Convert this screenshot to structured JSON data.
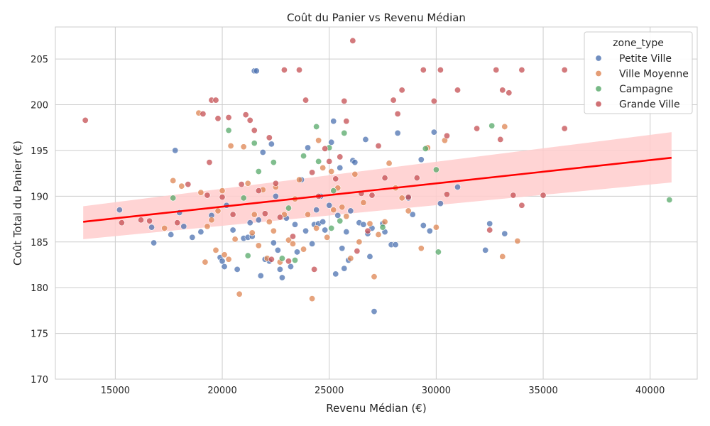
{
  "chart_data": {
    "type": "scatter",
    "title": "Coût du Panier vs Revenu Médian",
    "xlabel": "Revenu Médian (€)",
    "ylabel": "Coût Total du Panier (€)",
    "xlim": [
      12200,
      42200
    ],
    "ylim": [
      170,
      208.5
    ],
    "x_ticks": [
      15000,
      20000,
      25000,
      30000,
      35000,
      40000
    ],
    "y_ticks": [
      170,
      175,
      180,
      185,
      190,
      195,
      200,
      205
    ],
    "grid": true,
    "legend": {
      "title": "zone_type",
      "placement": "top-right",
      "entries": [
        "Petite Ville",
        "Ville Moyenne",
        "Campagne",
        "Grande Ville"
      ]
    },
    "colors": {
      "Petite Ville": "#4c72b0",
      "Ville Moyenne": "#dd8452",
      "Campagne": "#55a868",
      "Grande Ville": "#c44e52",
      "regression": "#ff0000",
      "ci_band": "#ffcccc"
    },
    "regression": {
      "x": [
        13500,
        41000
      ],
      "y": [
        187.2,
        194.2
      ],
      "ci_lower": [
        185.3,
        191.5
      ],
      "ci_upper": [
        188.9,
        197.0
      ]
    },
    "series": [
      {
        "name": "Petite Ville",
        "points": [
          [
            15200,
            188.5
          ],
          [
            16700,
            186.6
          ],
          [
            16800,
            184.9
          ],
          [
            17600,
            185.8
          ],
          [
            17800,
            195.0
          ],
          [
            18000,
            188.2
          ],
          [
            18200,
            186.7
          ],
          [
            18600,
            185.5
          ],
          [
            19000,
            186.1
          ],
          [
            19500,
            187.9
          ],
          [
            19900,
            183.3
          ],
          [
            20000,
            182.9
          ],
          [
            20100,
            182.3
          ],
          [
            20200,
            189.0
          ],
          [
            20500,
            186.3
          ],
          [
            20700,
            182.0
          ],
          [
            21000,
            185.4
          ],
          [
            21200,
            185.5
          ],
          [
            21300,
            187.1
          ],
          [
            21400,
            185.6
          ],
          [
            21500,
            203.7
          ],
          [
            21600,
            203.7
          ],
          [
            21700,
            187.4
          ],
          [
            21800,
            181.3
          ],
          [
            21900,
            194.8
          ],
          [
            22000,
            183.1
          ],
          [
            22200,
            182.9
          ],
          [
            22300,
            195.7
          ],
          [
            22400,
            184.9
          ],
          [
            22500,
            190.0
          ],
          [
            22600,
            184.1
          ],
          [
            22700,
            182.0
          ],
          [
            22800,
            181.1
          ],
          [
            23000,
            187.6
          ],
          [
            23200,
            182.3
          ],
          [
            23400,
            186.9
          ],
          [
            23500,
            183.9
          ],
          [
            23700,
            191.8
          ],
          [
            23900,
            186.2
          ],
          [
            24000,
            195.3
          ],
          [
            24200,
            184.8
          ],
          [
            24300,
            186.9
          ],
          [
            24400,
            188.5
          ],
          [
            24500,
            187.0
          ],
          [
            24600,
            190.0
          ],
          [
            24700,
            187.2
          ],
          [
            24800,
            186.3
          ],
          [
            25000,
            189.0
          ],
          [
            25100,
            195.9
          ],
          [
            25200,
            198.2
          ],
          [
            25300,
            181.5
          ],
          [
            25400,
            187.9
          ],
          [
            25500,
            193.1
          ],
          [
            25600,
            184.3
          ],
          [
            25700,
            182.1
          ],
          [
            25800,
            186.1
          ],
          [
            25900,
            183.0
          ],
          [
            26000,
            188.4
          ],
          [
            26100,
            193.9
          ],
          [
            26200,
            193.7
          ],
          [
            26400,
            187.1
          ],
          [
            26600,
            186.9
          ],
          [
            26700,
            196.2
          ],
          [
            26800,
            185.9
          ],
          [
            26900,
            183.4
          ],
          [
            27000,
            186.5
          ],
          [
            27100,
            177.4
          ],
          [
            27500,
            187.0
          ],
          [
            27600,
            186.1
          ],
          [
            27900,
            184.7
          ],
          [
            28100,
            184.7
          ],
          [
            28200,
            196.9
          ],
          [
            28700,
            189.8
          ],
          [
            28900,
            188.0
          ],
          [
            29300,
            194.0
          ],
          [
            29400,
            186.8
          ],
          [
            29700,
            186.2
          ],
          [
            29900,
            197.0
          ],
          [
            30200,
            189.2
          ],
          [
            31000,
            191.0
          ],
          [
            32300,
            184.1
          ],
          [
            32500,
            187.0
          ],
          [
            33200,
            185.9
          ]
        ]
      },
      {
        "name": "Ville Moyenne",
        "points": [
          [
            17300,
            186.5
          ],
          [
            17700,
            191.7
          ],
          [
            18100,
            191.1
          ],
          [
            18900,
            199.1
          ],
          [
            19000,
            190.4
          ],
          [
            19200,
            182.8
          ],
          [
            19300,
            186.7
          ],
          [
            19500,
            187.4
          ],
          [
            19700,
            184.1
          ],
          [
            19800,
            188.4
          ],
          [
            20000,
            190.6
          ],
          [
            20100,
            183.6
          ],
          [
            20300,
            183.1
          ],
          [
            20400,
            195.5
          ],
          [
            20600,
            185.3
          ],
          [
            20800,
            179.3
          ],
          [
            21000,
            195.4
          ],
          [
            21200,
            191.4
          ],
          [
            21400,
            186.0
          ],
          [
            21500,
            188.0
          ],
          [
            21700,
            184.6
          ],
          [
            21900,
            190.7
          ],
          [
            22100,
            183.2
          ],
          [
            22200,
            187.2
          ],
          [
            22400,
            186.2
          ],
          [
            22500,
            191.0
          ],
          [
            22700,
            182.8
          ],
          [
            22900,
            188.0
          ],
          [
            23100,
            185.2
          ],
          [
            23300,
            184.8
          ],
          [
            23400,
            189.7
          ],
          [
            23600,
            191.8
          ],
          [
            23800,
            184.2
          ],
          [
            24000,
            188.0
          ],
          [
            24200,
            178.8
          ],
          [
            24400,
            186.5
          ],
          [
            24500,
            196.1
          ],
          [
            24700,
            193.1
          ],
          [
            24900,
            185.5
          ],
          [
            25100,
            192.7
          ],
          [
            25200,
            188.5
          ],
          [
            25400,
            190.9
          ],
          [
            25600,
            188.8
          ],
          [
            25800,
            187.8
          ],
          [
            26000,
            183.2
          ],
          [
            26200,
            192.4
          ],
          [
            26400,
            185.0
          ],
          [
            26600,
            189.3
          ],
          [
            26900,
            187.0
          ],
          [
            27100,
            181.2
          ],
          [
            27300,
            185.8
          ],
          [
            27600,
            187.2
          ],
          [
            27800,
            193.6
          ],
          [
            28100,
            190.9
          ],
          [
            28400,
            189.8
          ],
          [
            28700,
            188.4
          ],
          [
            29300,
            184.3
          ],
          [
            29600,
            195.3
          ],
          [
            30000,
            186.6
          ],
          [
            30400,
            196.1
          ],
          [
            33100,
            183.4
          ],
          [
            33200,
            197.6
          ],
          [
            33800,
            185.1
          ]
        ]
      },
      {
        "name": "Campagne",
        "points": [
          [
            17700,
            189.8
          ],
          [
            20300,
            197.2
          ],
          [
            21000,
            189.8
          ],
          [
            21200,
            183.5
          ],
          [
            21500,
            195.8
          ],
          [
            21700,
            192.7
          ],
          [
            22400,
            193.7
          ],
          [
            22800,
            183.2
          ],
          [
            23100,
            188.7
          ],
          [
            23400,
            183.0
          ],
          [
            23800,
            194.4
          ],
          [
            24400,
            197.6
          ],
          [
            24500,
            193.8
          ],
          [
            25000,
            195.3
          ],
          [
            25100,
            186.5
          ],
          [
            25200,
            190.6
          ],
          [
            25500,
            187.3
          ],
          [
            25700,
            196.9
          ],
          [
            27500,
            186.6
          ],
          [
            29500,
            195.2
          ],
          [
            30000,
            192.9
          ],
          [
            30100,
            183.9
          ],
          [
            32600,
            197.7
          ],
          [
            40900,
            189.6
          ]
        ]
      },
      {
        "name": "Grande Ville",
        "points": [
          [
            13600,
            198.3
          ],
          [
            15300,
            187.1
          ],
          [
            16200,
            187.4
          ],
          [
            16600,
            187.3
          ],
          [
            17900,
            187.1
          ],
          [
            18400,
            191.3
          ],
          [
            19100,
            199.0
          ],
          [
            19300,
            190.1
          ],
          [
            19400,
            193.7
          ],
          [
            19500,
            200.5
          ],
          [
            19700,
            200.5
          ],
          [
            19800,
            198.5
          ],
          [
            20000,
            189.9
          ],
          [
            20300,
            198.6
          ],
          [
            20500,
            188.0
          ],
          [
            20900,
            191.3
          ],
          [
            21100,
            198.9
          ],
          [
            21300,
            198.3
          ],
          [
            21500,
            197.2
          ],
          [
            21700,
            190.6
          ],
          [
            22000,
            188.1
          ],
          [
            22200,
            196.4
          ],
          [
            22300,
            183.1
          ],
          [
            22500,
            191.4
          ],
          [
            22700,
            187.7
          ],
          [
            22900,
            203.8
          ],
          [
            23100,
            182.9
          ],
          [
            23300,
            185.6
          ],
          [
            23600,
            203.8
          ],
          [
            23900,
            200.5
          ],
          [
            24200,
            192.6
          ],
          [
            24300,
            182.0
          ],
          [
            24500,
            190.0
          ],
          [
            24800,
            195.2
          ],
          [
            25000,
            193.8
          ],
          [
            25300,
            191.9
          ],
          [
            25500,
            194.3
          ],
          [
            25700,
            200.4
          ],
          [
            25800,
            198.2
          ],
          [
            26100,
            207.0
          ],
          [
            26300,
            184.0
          ],
          [
            26500,
            190.3
          ],
          [
            26800,
            186.2
          ],
          [
            27000,
            190.1
          ],
          [
            27300,
            195.5
          ],
          [
            27600,
            192.0
          ],
          [
            28000,
            200.5
          ],
          [
            28200,
            199.0
          ],
          [
            28400,
            201.6
          ],
          [
            28700,
            189.9
          ],
          [
            29100,
            192.0
          ],
          [
            29400,
            203.8
          ],
          [
            29900,
            200.4
          ],
          [
            30200,
            203.8
          ],
          [
            30500,
            190.2
          ],
          [
            30500,
            196.6
          ],
          [
            31000,
            201.6
          ],
          [
            31900,
            197.4
          ],
          [
            32500,
            186.3
          ],
          [
            32800,
            203.8
          ],
          [
            33000,
            196.2
          ],
          [
            33100,
            201.6
          ],
          [
            33400,
            201.3
          ],
          [
            33600,
            190.1
          ],
          [
            34000,
            203.8
          ],
          [
            34000,
            189.0
          ],
          [
            35000,
            190.1
          ],
          [
            36000,
            203.8
          ],
          [
            36000,
            197.4
          ]
        ]
      }
    ]
  }
}
